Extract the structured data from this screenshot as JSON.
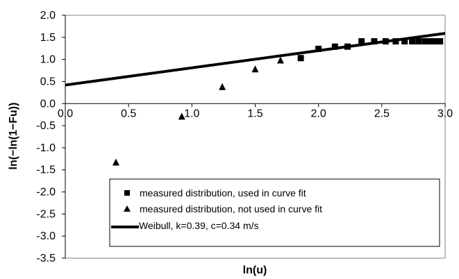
{
  "chart_data": {
    "type": "scatter",
    "xlabel": "ln(u)",
    "ylabel": "ln(−ln(1−Fu))",
    "xlim": [
      0.0,
      3.0
    ],
    "ylim": [
      -3.5,
      2.0
    ],
    "x_ticks": [
      "0.0",
      "0.5",
      "1.0",
      "1.5",
      "2.0",
      "2.5",
      "3.0"
    ],
    "y_ticks": [
      "2.0",
      "1.5",
      "1.0",
      "0.5",
      "0.0",
      "-0.5",
      "-1.0",
      "-1.5",
      "-2.0",
      "-2.5",
      "-3.0",
      "-3.5"
    ],
    "grid": "none",
    "legend_position": "bottom-right, inside plot",
    "series": [
      {
        "name": "measured distribution, used in curve fit",
        "marker": "square",
        "color": "#000000",
        "x": [
          1.86,
          2.0,
          2.13,
          2.23,
          2.34,
          2.44,
          2.53,
          2.61,
          2.68,
          2.74,
          2.79,
          2.84,
          2.88,
          2.92,
          2.96
        ],
        "y": [
          1.03,
          1.24,
          1.29,
          1.29,
          1.41,
          1.41,
          1.41,
          1.41,
          1.41,
          1.41,
          1.41,
          1.41,
          1.41,
          1.41,
          1.41
        ]
      },
      {
        "name": "measured distribution, not used in curve fit",
        "marker": "triangle",
        "color": "#000000",
        "x": [
          0.4,
          0.92,
          1.24,
          1.5,
          1.7
        ],
        "y": [
          -1.34,
          -0.3,
          0.37,
          0.77,
          0.97
        ]
      },
      {
        "name": "Weibull, k=0.39, c=0.34 m/s",
        "type": "line",
        "color": "#000000",
        "x": [
          0.0,
          3.0
        ],
        "y": [
          0.42,
          1.59
        ]
      }
    ]
  }
}
